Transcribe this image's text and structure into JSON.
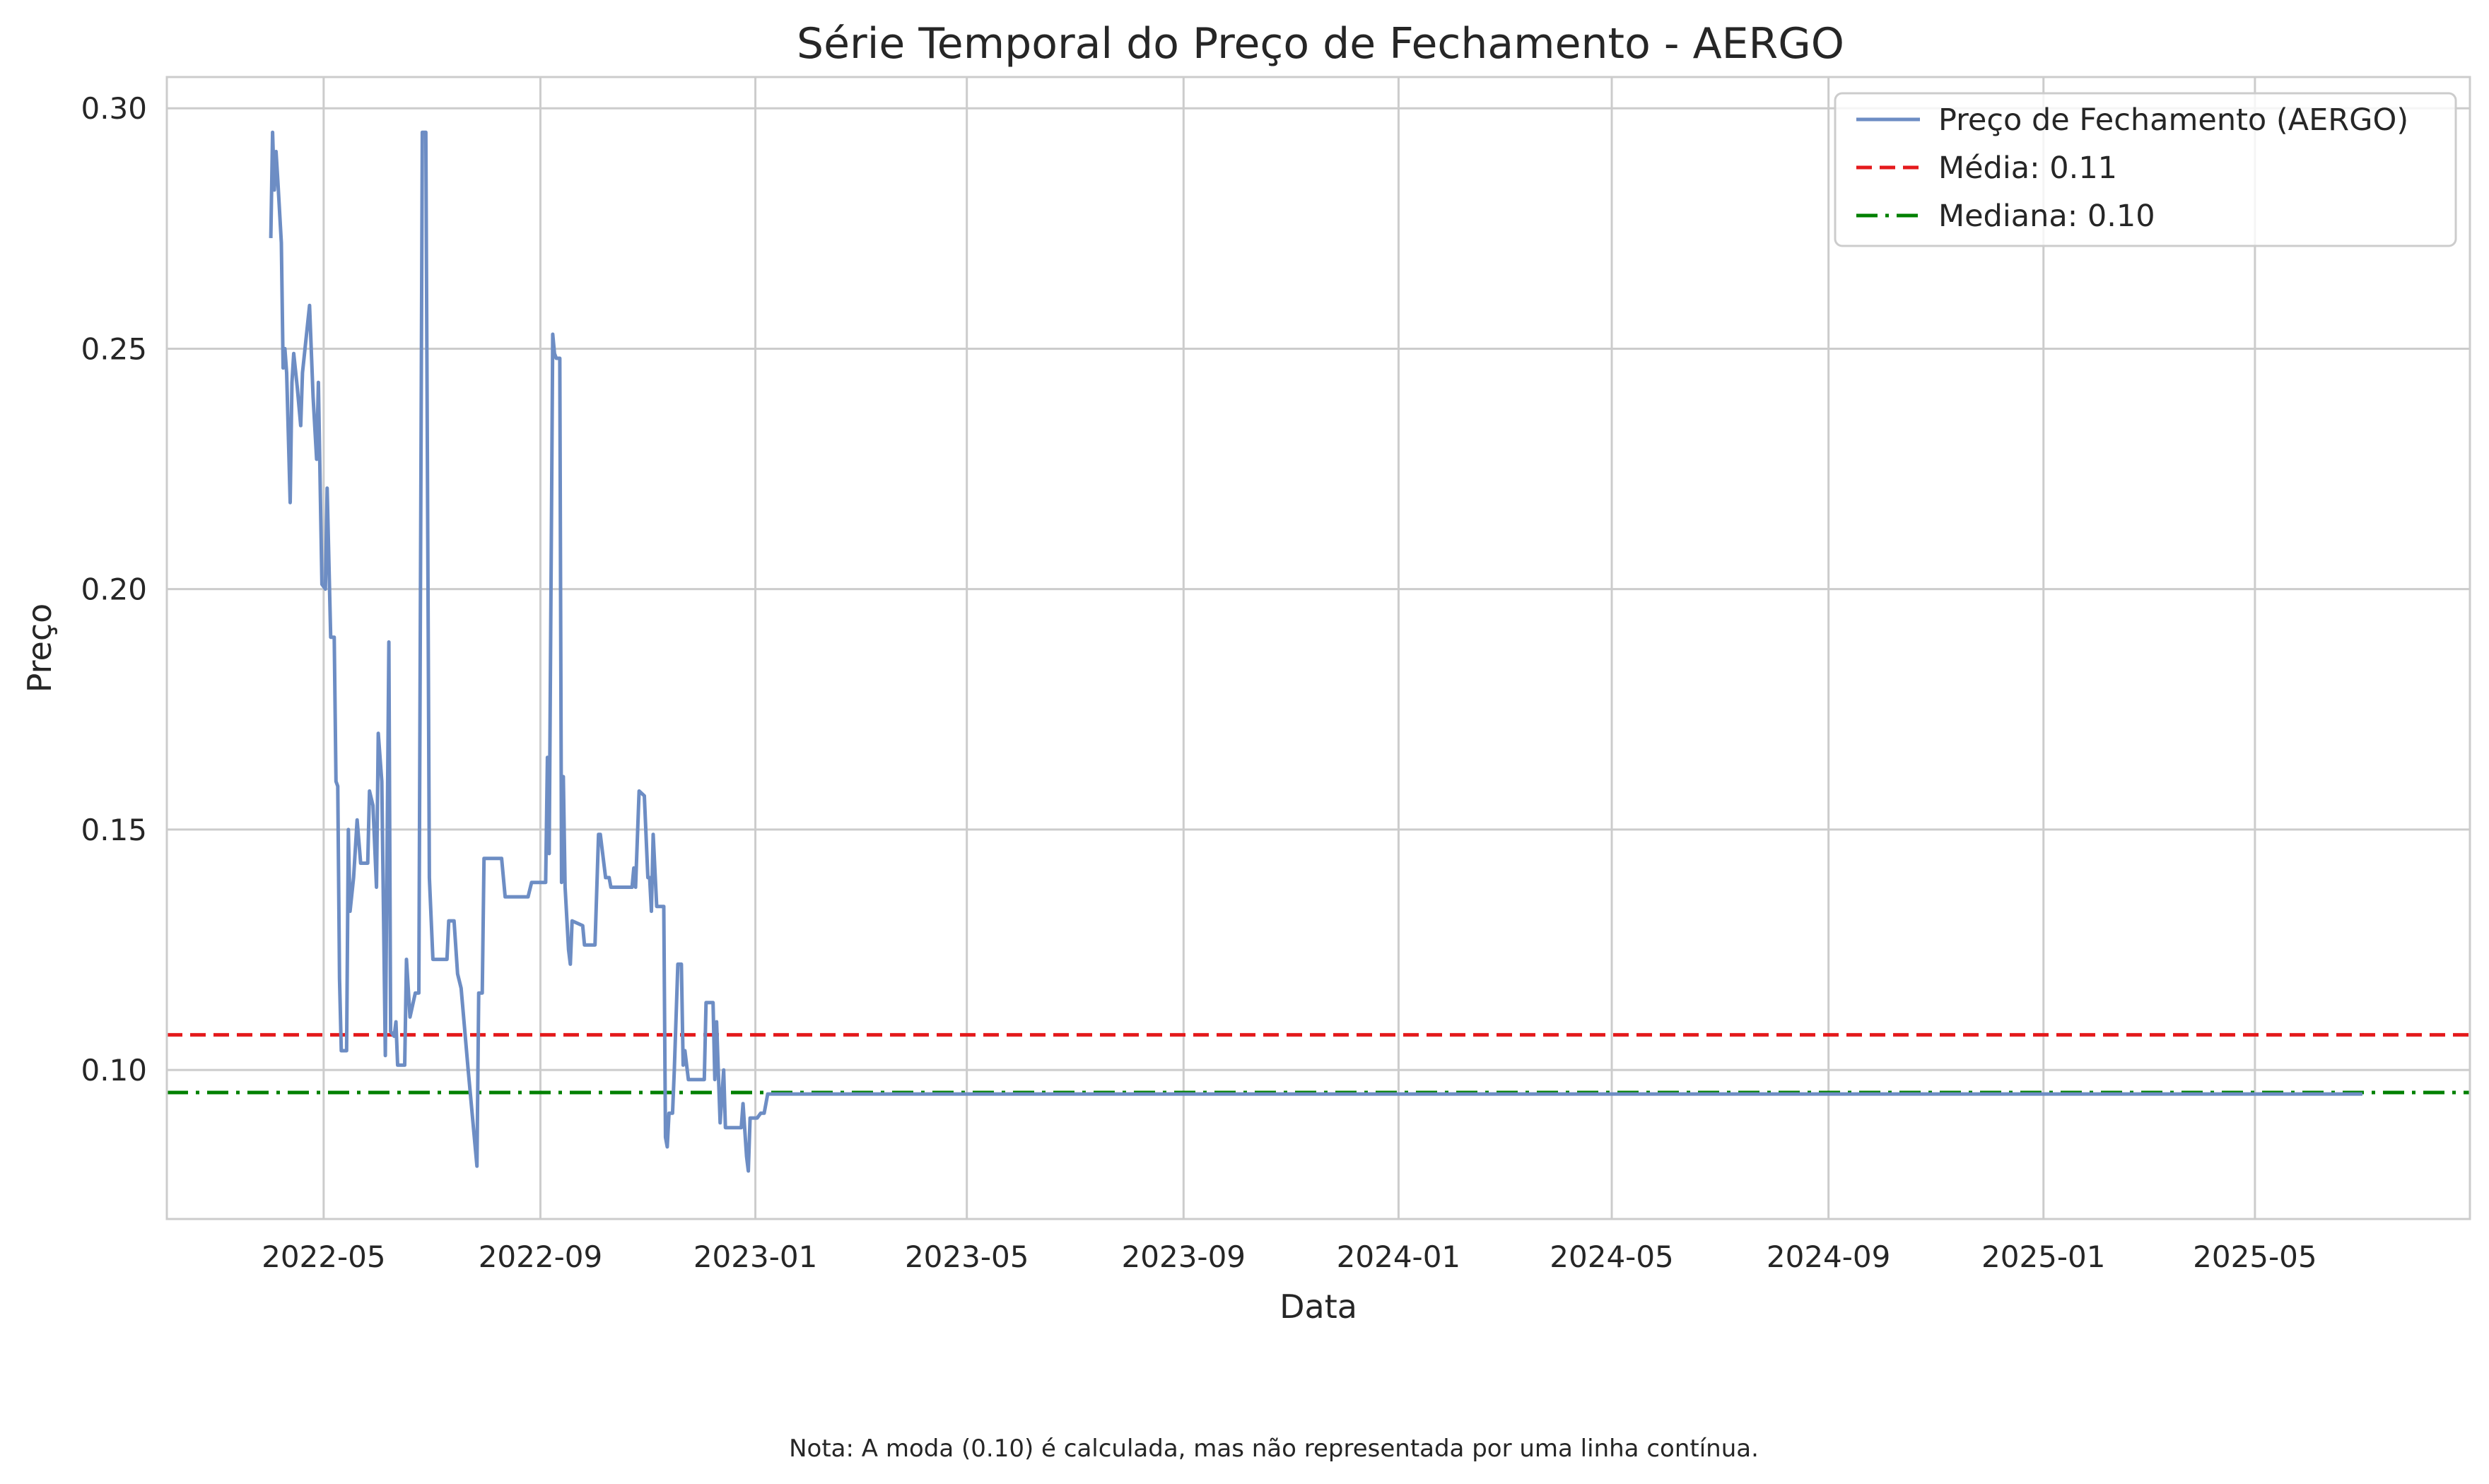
{
  "chart_data": {
    "type": "line",
    "title": "Série Temporal do Preço de Fechamento - AERGO",
    "xlabel": "Data",
    "ylabel": "Preço",
    "note": "Nota: A moda (0.10) é calculada, mas não representada por uma linha contínua.",
    "xlim": [
      "2022-02-01",
      "2025-08-31"
    ],
    "ylim": [
      0.069,
      0.3065
    ],
    "grid": true,
    "legend_position": "top-right",
    "x_ticks": [
      "2022-05",
      "2022-09",
      "2023-01",
      "2023-05",
      "2023-09",
      "2024-01",
      "2024-05",
      "2024-09",
      "2025-01",
      "2025-05"
    ],
    "y_ticks": [
      "0.10",
      "0.15",
      "0.20",
      "0.25",
      "0.30"
    ],
    "reference_lines": [
      {
        "name": "Média: 0.11",
        "value": 0.1073,
        "color": "#e41a1c",
        "style": "dashed"
      },
      {
        "name": "Mediana: 0.10",
        "value": 0.0953,
        "color": "#008000",
        "style": "dashdot"
      }
    ],
    "series": [
      {
        "name": "Preço de Fechamento (AERGO)",
        "color": "#6d8dc4",
        "points": [
          [
            "2022-04-01",
            0.273
          ],
          [
            "2022-04-02",
            0.295
          ],
          [
            "2022-04-03",
            0.283
          ],
          [
            "2022-04-04",
            0.291
          ],
          [
            "2022-04-05",
            0.285
          ],
          [
            "2022-04-07",
            0.272
          ],
          [
            "2022-04-08",
            0.246
          ],
          [
            "2022-04-09",
            0.25
          ],
          [
            "2022-04-10",
            0.245
          ],
          [
            "2022-04-12",
            0.218
          ],
          [
            "2022-04-13",
            0.243
          ],
          [
            "2022-04-14",
            0.249
          ],
          [
            "2022-04-16",
            0.242
          ],
          [
            "2022-04-18",
            0.234
          ],
          [
            "2022-04-19",
            0.245
          ],
          [
            "2022-04-21",
            0.252
          ],
          [
            "2022-04-23",
            0.259
          ],
          [
            "2022-04-25",
            0.24
          ],
          [
            "2022-04-27",
            0.227
          ],
          [
            "2022-04-28",
            0.243
          ],
          [
            "2022-04-30",
            0.201
          ],
          [
            "2022-05-02",
            0.2
          ],
          [
            "2022-05-03",
            0.221
          ],
          [
            "2022-05-05",
            0.19
          ],
          [
            "2022-05-07",
            0.19
          ],
          [
            "2022-05-08",
            0.16
          ],
          [
            "2022-05-09",
            0.159
          ],
          [
            "2022-05-10",
            0.119
          ],
          [
            "2022-05-11",
            0.104
          ],
          [
            "2022-05-14",
            0.104
          ],
          [
            "2022-05-15",
            0.15
          ],
          [
            "2022-05-16",
            0.133
          ],
          [
            "2022-05-18",
            0.14
          ],
          [
            "2022-05-20",
            0.152
          ],
          [
            "2022-05-22",
            0.143
          ],
          [
            "2022-05-26",
            0.143
          ],
          [
            "2022-05-27",
            0.158
          ],
          [
            "2022-05-29",
            0.155
          ],
          [
            "2022-05-31",
            0.138
          ],
          [
            "2022-06-01",
            0.17
          ],
          [
            "2022-06-03",
            0.16
          ],
          [
            "2022-06-05",
            0.103
          ],
          [
            "2022-06-07",
            0.189
          ],
          [
            "2022-06-08",
            0.108
          ],
          [
            "2022-06-10",
            0.107
          ],
          [
            "2022-06-11",
            0.11
          ],
          [
            "2022-06-12",
            0.101
          ],
          [
            "2022-06-16",
            0.101
          ],
          [
            "2022-06-17",
            0.123
          ],
          [
            "2022-06-19",
            0.111
          ],
          [
            "2022-06-22",
            0.116
          ],
          [
            "2022-06-24",
            0.116
          ],
          [
            "2022-06-26",
            0.295
          ],
          [
            "2022-06-28",
            0.295
          ],
          [
            "2022-06-30",
            0.14
          ],
          [
            "2022-07-02",
            0.123
          ],
          [
            "2022-07-10",
            0.123
          ],
          [
            "2022-07-11",
            0.131
          ],
          [
            "2022-07-14",
            0.131
          ],
          [
            "2022-07-16",
            0.12
          ],
          [
            "2022-07-18",
            0.117
          ],
          [
            "2022-07-22",
            0.1
          ],
          [
            "2022-07-27",
            0.08
          ],
          [
            "2022-07-28",
            0.116
          ],
          [
            "2022-07-30",
            0.116
          ],
          [
            "2022-07-31",
            0.144
          ],
          [
            "2022-08-10",
            0.144
          ],
          [
            "2022-08-12",
            0.136
          ],
          [
            "2022-08-25",
            0.136
          ],
          [
            "2022-08-27",
            0.139
          ],
          [
            "2022-09-04",
            0.139
          ],
          [
            "2022-09-05",
            0.165
          ],
          [
            "2022-09-06",
            0.145
          ],
          [
            "2022-09-08",
            0.253
          ],
          [
            "2022-09-09",
            0.249
          ],
          [
            "2022-09-10",
            0.248
          ],
          [
            "2022-09-12",
            0.248
          ],
          [
            "2022-09-13",
            0.139
          ],
          [
            "2022-09-14",
            0.161
          ],
          [
            "2022-09-15",
            0.138
          ],
          [
            "2022-09-17",
            0.125
          ],
          [
            "2022-09-18",
            0.122
          ],
          [
            "2022-09-19",
            0.131
          ],
          [
            "2022-09-25",
            0.13
          ],
          [
            "2022-09-26",
            0.126
          ],
          [
            "2022-10-02",
            0.126
          ],
          [
            "2022-10-04",
            0.149
          ],
          [
            "2022-10-05",
            0.149
          ],
          [
            "2022-10-08",
            0.14
          ],
          [
            "2022-10-10",
            0.14
          ],
          [
            "2022-10-11",
            0.138
          ],
          [
            "2022-10-23",
            0.138
          ],
          [
            "2022-10-24",
            0.142
          ],
          [
            "2022-10-25",
            0.138
          ],
          [
            "2022-10-27",
            0.158
          ],
          [
            "2022-10-30",
            0.157
          ],
          [
            "2022-11-01",
            0.14
          ],
          [
            "2022-11-02",
            0.14
          ],
          [
            "2022-11-03",
            0.133
          ],
          [
            "2022-11-04",
            0.149
          ],
          [
            "2022-11-06",
            0.134
          ],
          [
            "2022-11-10",
            0.134
          ],
          [
            "2022-11-11",
            0.086
          ],
          [
            "2022-11-12",
            0.084
          ],
          [
            "2022-11-13",
            0.091
          ],
          [
            "2022-11-15",
            0.091
          ],
          [
            "2022-11-16",
            0.1
          ],
          [
            "2022-11-18",
            0.122
          ],
          [
            "2022-11-20",
            0.122
          ],
          [
            "2022-11-21",
            0.101
          ],
          [
            "2022-11-22",
            0.104
          ],
          [
            "2022-11-24",
            0.098
          ],
          [
            "2022-12-03",
            0.098
          ],
          [
            "2022-12-04",
            0.114
          ],
          [
            "2022-12-08",
            0.114
          ],
          [
            "2022-12-09",
            0.098
          ],
          [
            "2022-12-10",
            0.11
          ],
          [
            "2022-12-12",
            0.089
          ],
          [
            "2022-12-14",
            0.1
          ],
          [
            "2022-12-15",
            0.088
          ],
          [
            "2022-12-24",
            0.088
          ],
          [
            "2022-12-25",
            0.093
          ],
          [
            "2022-12-27",
            0.082
          ],
          [
            "2022-12-28",
            0.079
          ],
          [
            "2022-12-29",
            0.09
          ],
          [
            "2023-01-02",
            0.09
          ],
          [
            "2023-01-04",
            0.091
          ],
          [
            "2023-01-06",
            0.091
          ],
          [
            "2023-01-08",
            0.095
          ],
          [
            "2025-07-01",
            0.095
          ]
        ]
      }
    ]
  }
}
